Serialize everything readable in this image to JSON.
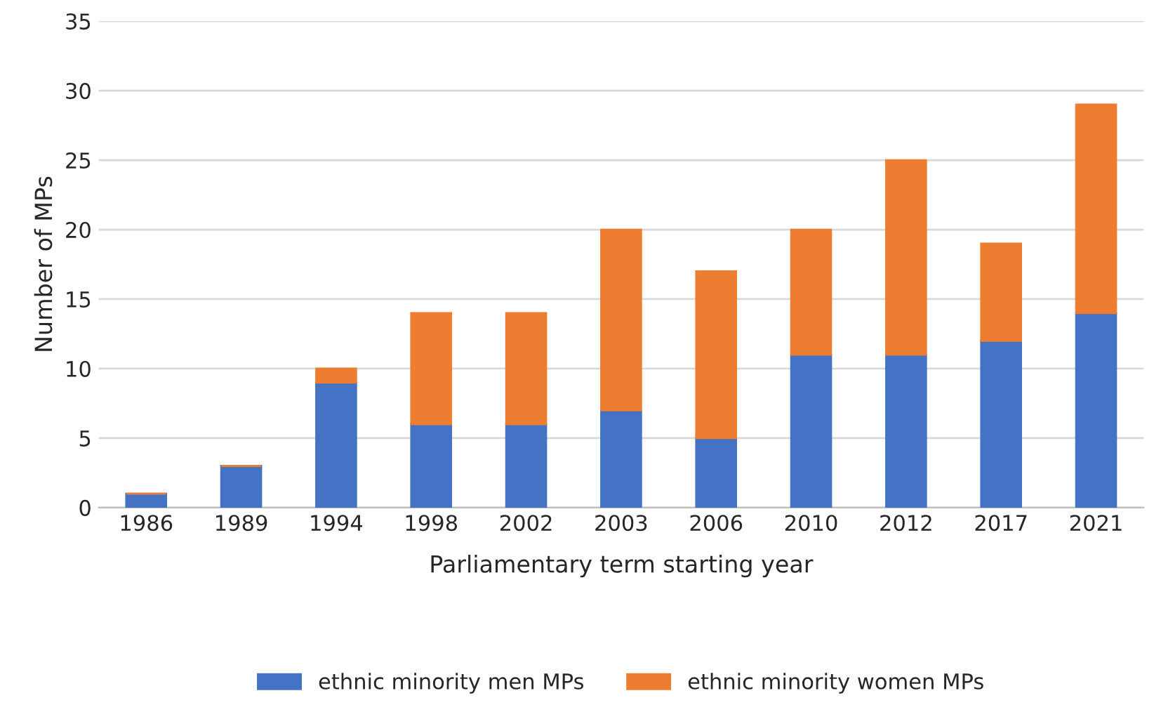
{
  "chart_data": {
    "type": "bar",
    "stacked": true,
    "xlabel": "Parliamentary term starting year",
    "ylabel": "Number of MPs",
    "categories": [
      "1986",
      "1989",
      "1994",
      "1998",
      "2002",
      "2003",
      "2006",
      "2010",
      "2012",
      "2017",
      "2021"
    ],
    "series": [
      {
        "name": "ethnic minority men MPs",
        "color": "#4472c4",
        "values": [
          1,
          3,
          9,
          6,
          6,
          7,
          5,
          11,
          11,
          12,
          14
        ]
      },
      {
        "name": "ethnic minority women MPs",
        "color": "#ed7d31",
        "values": [
          0,
          0,
          1,
          8,
          8,
          13,
          12,
          9,
          14,
          7,
          15
        ]
      }
    ],
    "ylim": [
      0,
      35
    ],
    "yticks": [
      0,
      5,
      10,
      15,
      20,
      25,
      30,
      35
    ],
    "grid": "y",
    "legend": "bottom"
  }
}
